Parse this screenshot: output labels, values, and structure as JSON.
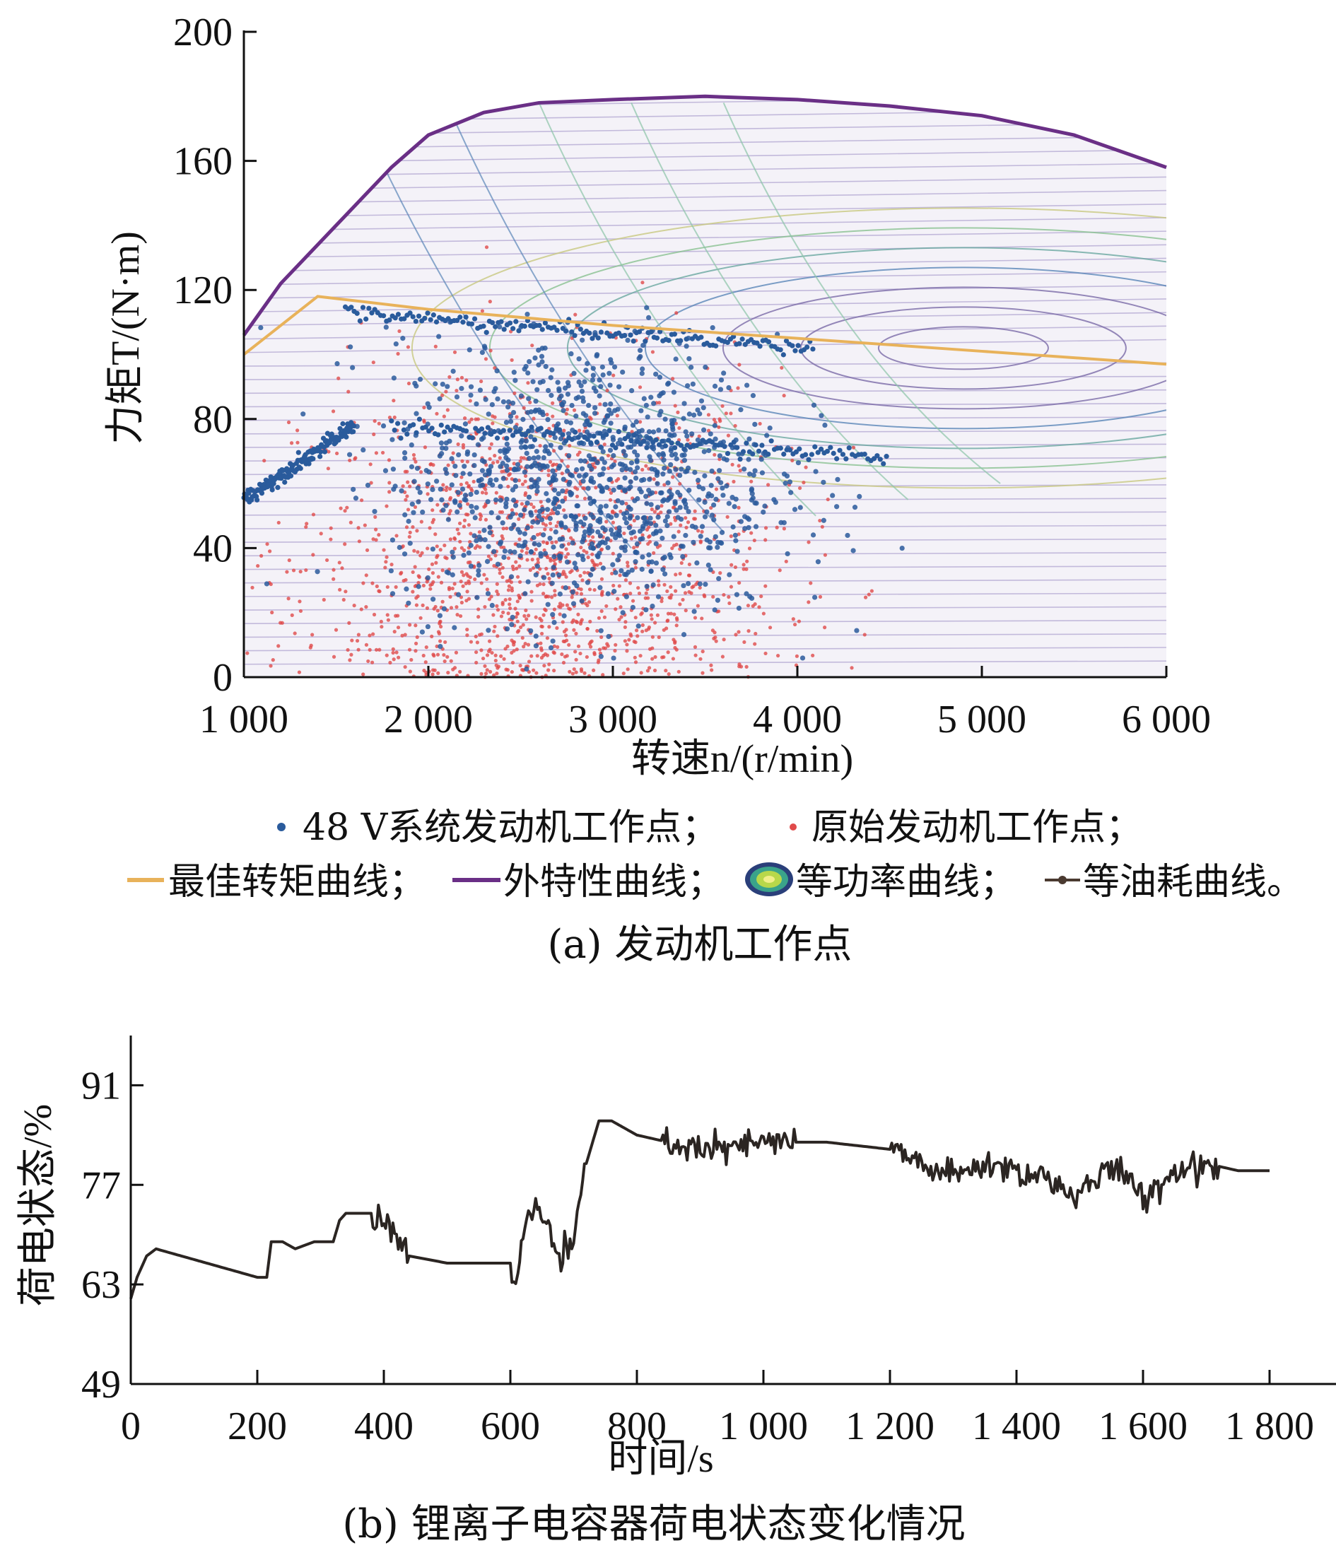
{
  "chart_data": [
    {
      "type": "scatter",
      "caption": "(a) 发动机工作点",
      "xlabel": "转速n/(r/min)",
      "ylabel": "力矩T/(N·m)",
      "xlim": [
        1000,
        6000
      ],
      "ylim": [
        0,
        200
      ],
      "x_ticks": [
        "1 000",
        "2 000",
        "3 000",
        "4 000",
        "5 000",
        "6 000"
      ],
      "y_ticks": [
        "0",
        "40",
        "80",
        "120",
        "160",
        "200"
      ],
      "legend": [
        {
          "name": "48 V系统发动机工作点；",
          "marker": "dot",
          "color": "#2a5b9c"
        },
        {
          "name": "原始发动机工作点；",
          "marker": "dot",
          "color": "#e04a4a"
        },
        {
          "name": "最佳转矩曲线；",
          "marker": "line",
          "color": "#e8b25a"
        },
        {
          "name": "外特性曲线；",
          "marker": "line",
          "color": "#6a2f86"
        },
        {
          "name": "等功率曲线；",
          "marker": "ring",
          "color": "#3a7a7a"
        },
        {
          "name": "等油耗曲线。",
          "marker": "line-dot",
          "color": "#4a3a30"
        }
      ],
      "external_characteristic": {
        "x": [
          1000,
          1200,
          1500,
          1800,
          2000,
          2300,
          2600,
          3000,
          3500,
          4000,
          4500,
          5000,
          5500,
          6000
        ],
        "y": [
          106,
          122,
          140,
          158,
          168,
          175,
          178,
          179,
          180,
          179,
          177,
          174,
          168,
          158
        ]
      },
      "optimal_torque_curve": {
        "x": [
          1000,
          1400,
          2000,
          3000,
          4000,
          5000,
          6000
        ],
        "y": [
          100,
          118,
          114,
          109,
          105,
          101,
          97
        ]
      },
      "series": [
        {
          "name": "48 V系统发动机工作点",
          "center": [
            2900,
            62
          ],
          "spread": [
            600,
            28
          ]
        },
        {
          "name": "原始发动机工作点",
          "center": [
            2600,
            35
          ],
          "spread": [
            700,
            35
          ]
        }
      ]
    },
    {
      "type": "line",
      "caption": "(b) 锂离子电容器荷电状态变化情况",
      "xlabel": "时间/s",
      "ylabel": "荷电状态/%",
      "xlim": [
        0,
        1900
      ],
      "ylim": [
        49,
        98
      ],
      "x_ticks": [
        "0",
        "200",
        "400",
        "600",
        "800",
        "1 000",
        "1 200",
        "1 400",
        "1 600",
        "1 800"
      ],
      "y_ticks": [
        "49",
        "63",
        "77",
        "91"
      ],
      "series": [
        {
          "x": [
            0,
            10,
            25,
            40,
            80,
            120,
            160,
            200,
            215,
            222,
            240,
            260,
            290,
            320,
            330,
            340,
            360,
            380,
            400,
            420,
            440,
            500,
            560,
            600,
            605,
            612,
            620,
            640,
            660,
            680,
            700,
            720,
            740,
            760,
            780,
            800,
            850,
            900,
            950,
            1000,
            1100,
            1200,
            1250,
            1300,
            1350,
            1400,
            1450,
            1500,
            1550,
            1600,
            1650,
            1700,
            1750,
            1800
          ],
          "y": [
            61,
            64,
            67,
            68,
            67,
            66,
            65,
            64,
            64,
            69,
            69,
            68,
            69,
            69,
            72,
            73,
            73,
            73,
            72,
            70,
            67,
            66,
            66,
            66,
            62,
            65,
            70,
            74,
            71,
            66,
            69,
            80,
            86,
            86,
            85,
            84,
            83,
            82,
            82,
            83,
            83,
            82,
            80,
            78,
            80,
            79,
            78,
            75,
            80,
            75,
            79,
            80,
            79,
            79
          ]
        }
      ]
    }
  ]
}
